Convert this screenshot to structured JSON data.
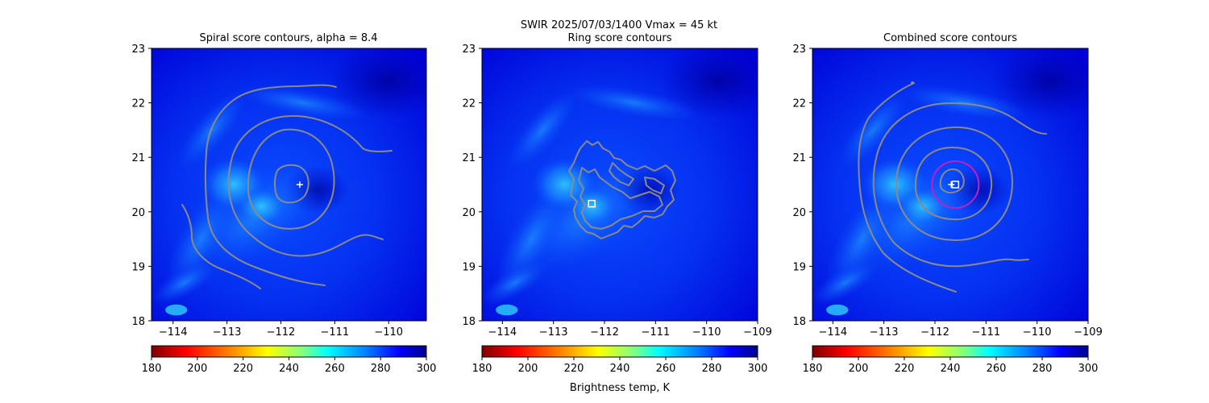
{
  "suptitle_line": "SWIR  2025/07/03/1400    Vmax = 45 kt",
  "colorbar_label": "Brightness temp, K",
  "colors": {
    "contour": "#8a8a8a",
    "ring": "#c020c0",
    "marker": "#ffffff",
    "colormap": [
      "#800000",
      "#ff0000",
      "#ff8000",
      "#ffff00",
      "#80ff80",
      "#00ffff",
      "#0080ff",
      "#0000ff",
      "#00008f"
    ]
  },
  "chart_data": [
    {
      "type": "heatmap",
      "title": "Spiral score contours, alpha =  8.4",
      "x_ticks": [
        "−114",
        "−113",
        "−112",
        "−111",
        "−110"
      ],
      "x_tick_values": [
        -114,
        -113,
        -112,
        -111,
        -110
      ],
      "y_ticks": [
        "18",
        "19",
        "20",
        "21",
        "22",
        "23"
      ],
      "y_tick_values": [
        18,
        19,
        20,
        21,
        22,
        23
      ],
      "xlim": [
        -114.4,
        -109.3
      ],
      "ylim": [
        18,
        23
      ],
      "center_marker": {
        "shape": "plus",
        "lon": -111.65,
        "lat": 20.5
      },
      "colorbar": {
        "range": [
          180,
          300
        ],
        "ticks": [
          "180",
          "200",
          "220",
          "240",
          "260",
          "280",
          "300"
        ],
        "tick_values": [
          180,
          200,
          220,
          240,
          260,
          280,
          300
        ]
      }
    },
    {
      "type": "heatmap",
      "title": "Ring score contours",
      "x_ticks": [
        "−114",
        "−113",
        "−112",
        "−111",
        "−110",
        "−109"
      ],
      "x_tick_values": [
        -114,
        -113,
        -112,
        -111,
        -110,
        -109
      ],
      "y_ticks": [
        "18",
        "19",
        "20",
        "21",
        "22",
        "23"
      ],
      "y_tick_values": [
        18,
        19,
        20,
        21,
        22,
        23
      ],
      "xlim": [
        -114.4,
        -109
      ],
      "ylim": [
        18,
        23
      ],
      "center_marker": {
        "shape": "square",
        "lon": -112.25,
        "lat": 20.15
      },
      "colorbar": {
        "range": [
          180,
          300
        ],
        "ticks": [
          "180",
          "200",
          "220",
          "240",
          "260",
          "280",
          "300"
        ],
        "tick_values": [
          180,
          200,
          220,
          240,
          260,
          280,
          300
        ]
      }
    },
    {
      "type": "heatmap",
      "title": "Combined score contours",
      "x_ticks": [
        "−114",
        "−113",
        "−112",
        "−111",
        "−110",
        "−109"
      ],
      "x_tick_values": [
        -114,
        -113,
        -112,
        -111,
        -110,
        -109
      ],
      "y_ticks": [
        "18",
        "19",
        "20",
        "21",
        "22",
        "23"
      ],
      "y_tick_values": [
        18,
        19,
        20,
        21,
        22,
        23
      ],
      "xlim": [
        -114.4,
        -109
      ],
      "ylim": [
        18,
        23
      ],
      "center_marker": {
        "shape": "square",
        "lon": -111.6,
        "lat": 20.5
      },
      "first_guess_marker": {
        "shape": "plus",
        "lon": -111.68,
        "lat": 20.5
      },
      "colorbar": {
        "range": [
          180,
          300
        ],
        "ticks": [
          "180",
          "200",
          "220",
          "240",
          "260",
          "280",
          "300"
        ],
        "tick_values": [
          180,
          200,
          220,
          240,
          260,
          280,
          300
        ]
      }
    }
  ]
}
